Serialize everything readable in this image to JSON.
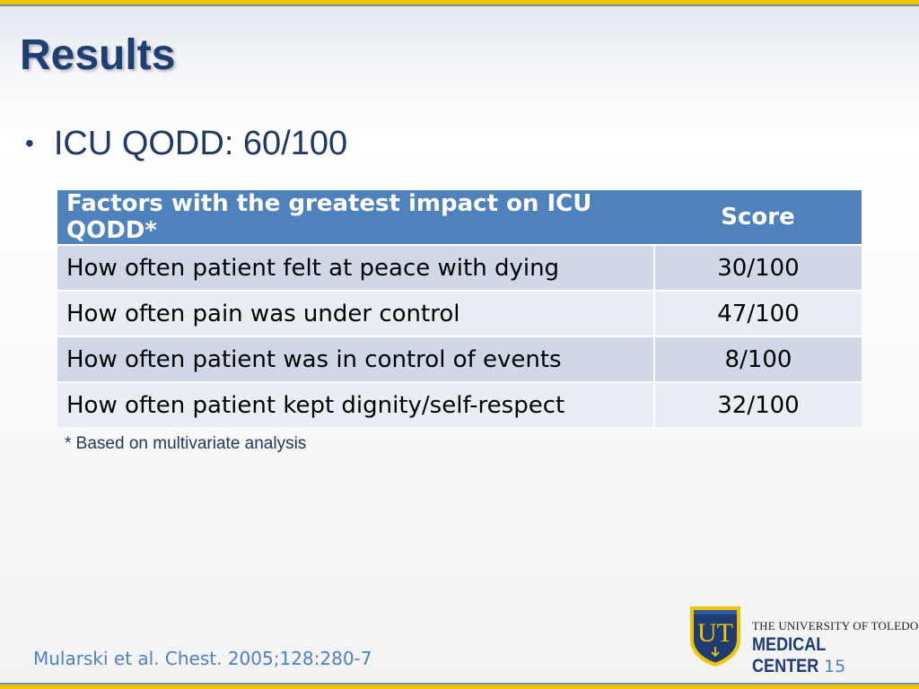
{
  "slide": {
    "title": "Results",
    "bullet": "ICU QODD:  60/100",
    "table": {
      "header": {
        "factor": "Factors with the greatest impact on ICU QODD*",
        "score": "Score"
      },
      "rows": [
        {
          "factor": "How often patient felt at peace with dying",
          "score": "30/100"
        },
        {
          "factor": "How often pain was under control",
          "score": "47/100"
        },
        {
          "factor": "How often patient was in control of events",
          "score": "8/100"
        },
        {
          "factor": "How often patient kept dignity/self-respect",
          "score": "32/100"
        }
      ]
    },
    "footnote": "* Based on multivariate analysis",
    "citation": "Mularski et al.  Chest.  2005;128:280-7",
    "page_number": "15"
  },
  "logo": {
    "monogram": "UT",
    "line1": "THE UNIVERSITY OF TOLEDO",
    "line2": "MEDICAL CENTER"
  },
  "colors": {
    "accent_gold": "#f2c400",
    "navy": "#1e3c73",
    "table_header": "#4f81bd",
    "row_odd": "#d0d8e8",
    "row_even": "#e9edf4"
  }
}
